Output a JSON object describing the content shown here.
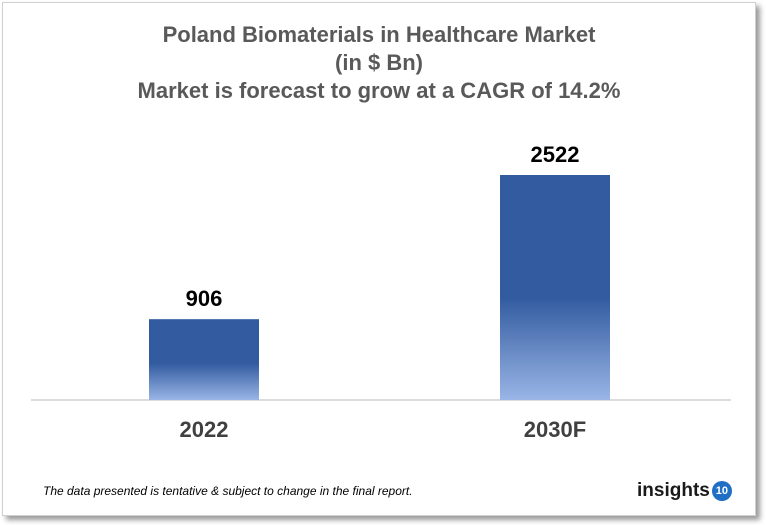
{
  "chart_data": {
    "type": "bar",
    "title": [
      "Poland Biomaterials in Healthcare Market",
      "(in $ Bn)",
      "Market is forecast to grow at a CAGR of 14.2%"
    ],
    "categories": [
      "2022",
      "2030F"
    ],
    "values": [
      906,
      2522
    ],
    "data_labels": [
      "906",
      "2522"
    ],
    "xlabel": "",
    "ylabel": "",
    "ylim": [
      0,
      2800
    ],
    "grid": false,
    "legend": "none",
    "bar_color_top": "#335ca0",
    "bar_color_bottom": "#9ab5e6"
  },
  "footer": {
    "note": "The data presented is tentative & subject to change in the final report."
  },
  "logo": {
    "text": "insights",
    "badge": "10",
    "badge_color": "#1f6fc5"
  }
}
